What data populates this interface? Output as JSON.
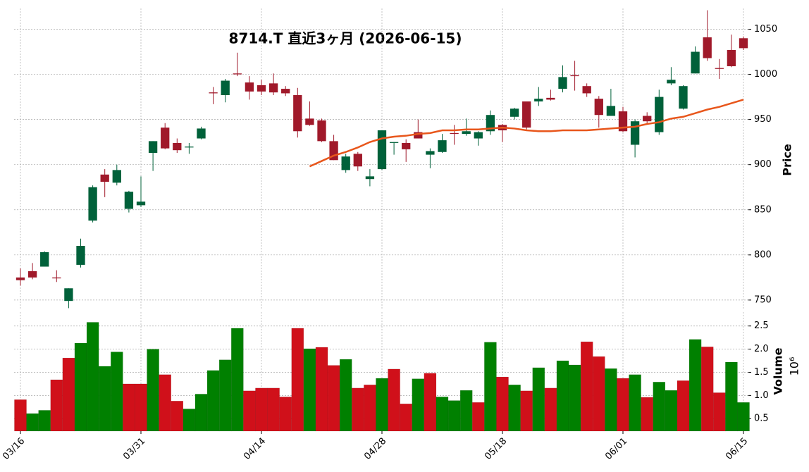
{
  "chart_data": [
    {
      "type": "candlestick",
      "title": "8714.T 直近3ヶ月 (2026-06-15)",
      "ylabel": "Price",
      "up_color": "#00613a",
      "down_color": "#a0192a",
      "open": [
        775,
        782,
        787,
        775,
        749,
        789,
        838,
        889,
        880,
        851,
        855,
        913,
        941,
        924,
        919,
        929,
        980,
        977,
        1001,
        991,
        988,
        990,
        984,
        977,
        951,
        949,
        926,
        894,
        912,
        884,
        895,
        924,
        924,
        936,
        911,
        914,
        935,
        934,
        929,
        937,
        944,
        953,
        970,
        970,
        974,
        984,
        999,
        987,
        973,
        954,
        959,
        922,
        954,
        936,
        990,
        962,
        1001,
        1041,
        1007,
        1027,
        1040
      ],
      "high": [
        785,
        791,
        804,
        783,
        763,
        818,
        877,
        895,
        900,
        871,
        887,
        926,
        946,
        929,
        924,
        942,
        986,
        995,
        1024,
        998,
        994,
        1001,
        987,
        985,
        970,
        951,
        933,
        912,
        914,
        895,
        938,
        925,
        928,
        950,
        918,
        934,
        944,
        951,
        937,
        960,
        945,
        963,
        970,
        986,
        983,
        1010,
        1015,
        990,
        976,
        984,
        964,
        950,
        958,
        983,
        1008,
        988,
        1031,
        1071,
        1017,
        1044,
        1042
      ],
      "low": [
        766,
        773,
        787,
        770,
        741,
        786,
        836,
        864,
        877,
        847,
        853,
        893,
        917,
        913,
        912,
        928,
        967,
        969,
        998,
        972,
        977,
        977,
        976,
        930,
        943,
        925,
        905,
        891,
        893,
        876,
        894,
        911,
        903,
        929,
        896,
        913,
        922,
        932,
        921,
        933,
        925,
        950,
        939,
        965,
        971,
        980,
        982,
        975,
        941,
        954,
        936,
        908,
        945,
        933,
        988,
        961,
        1001,
        1015,
        995,
        1008,
        1027
      ],
      "close": [
        772,
        775,
        803,
        774,
        763,
        810,
        875,
        881,
        894,
        870,
        859,
        926,
        918,
        916,
        920,
        940,
        979,
        993,
        1000,
        981,
        981,
        980,
        979,
        937,
        944,
        926,
        905,
        909,
        898,
        887,
        938,
        925,
        917,
        929,
        915,
        927,
        934,
        937,
        936,
        955,
        938,
        962,
        941,
        973,
        972,
        997,
        998,
        979,
        955,
        965,
        937,
        948,
        948,
        975,
        994,
        987,
        1025,
        1018,
        1006,
        1009,
        1029
      ],
      "ma": {
        "color": "#e8561b",
        "values": [
          null,
          null,
          null,
          null,
          null,
          null,
          null,
          null,
          null,
          null,
          null,
          null,
          null,
          null,
          null,
          null,
          null,
          null,
          null,
          null,
          null,
          null,
          null,
          null,
          898,
          904,
          910,
          914,
          919,
          925,
          929,
          931,
          932,
          934,
          935,
          938,
          938,
          939,
          939,
          940,
          941,
          940,
          938,
          937,
          937,
          938,
          938,
          938,
          939,
          940,
          941,
          942,
          945,
          947,
          951,
          953,
          957,
          961,
          964,
          968,
          972
        ]
      },
      "ylim": [
        739,
        1073
      ],
      "yticks": [
        750,
        800,
        850,
        900,
        950,
        1000,
        1050
      ],
      "grid": true
    },
    {
      "type": "bar",
      "ylabel": "Volume",
      "offset_label": "10⁶",
      "categories": [
        "03/16",
        null,
        null,
        null,
        null,
        null,
        null,
        null,
        null,
        null,
        "03/31",
        null,
        null,
        null,
        null,
        null,
        null,
        null,
        null,
        null,
        "04/14",
        null,
        null,
        null,
        null,
        null,
        null,
        null,
        null,
        null,
        "04/28",
        null,
        null,
        null,
        null,
        null,
        null,
        null,
        null,
        null,
        "05/18",
        null,
        null,
        null,
        null,
        null,
        null,
        null,
        null,
        null,
        "06/01",
        null,
        null,
        null,
        null,
        null,
        null,
        null,
        null,
        null,
        "06/15"
      ],
      "values": [
        0.91,
        0.61,
        0.68,
        1.34,
        1.81,
        2.13,
        2.58,
        1.63,
        1.94,
        1.25,
        1.25,
        2.0,
        1.45,
        0.88,
        0.71,
        1.03,
        1.54,
        1.77,
        2.45,
        1.1,
        1.16,
        1.16,
        0.97,
        2.45,
        2.01,
        2.04,
        1.65,
        1.78,
        1.16,
        1.23,
        1.37,
        1.57,
        0.82,
        1.36,
        1.48,
        0.97,
        0.89,
        1.11,
        0.85,
        2.15,
        1.4,
        1.23,
        1.1,
        1.6,
        1.16,
        1.75,
        1.66,
        2.16,
        1.84,
        1.58,
        1.37,
        1.45,
        0.96,
        1.29,
        1.11,
        1.32,
        2.21,
        2.05,
        1.06,
        1.72,
        0.85
      ],
      "colors": [
        "#d0101a",
        "#008000",
        "#008000",
        "#d0101a",
        "#d0101a",
        "#008000",
        "#008000",
        "#008000",
        "#008000",
        "#d0101a",
        "#d0101a",
        "#008000",
        "#d0101a",
        "#d0101a",
        "#008000",
        "#008000",
        "#008000",
        "#008000",
        "#008000",
        "#d0101a",
        "#d0101a",
        "#d0101a",
        "#d0101a",
        "#d0101a",
        "#008000",
        "#d0101a",
        "#d0101a",
        "#008000",
        "#d0101a",
        "#d0101a",
        "#008000",
        "#d0101a",
        "#d0101a",
        "#008000",
        "#d0101a",
        "#008000",
        "#008000",
        "#008000",
        "#d0101a",
        "#008000",
        "#d0101a",
        "#008000",
        "#d0101a",
        "#008000",
        "#d0101a",
        "#008000",
        "#008000",
        "#d0101a",
        "#d0101a",
        "#008000",
        "#d0101a",
        "#008000",
        "#d0101a",
        "#008000",
        "#008000",
        "#d0101a",
        "#008000",
        "#d0101a",
        "#d0101a",
        "#008000",
        "#008000"
      ],
      "ylim": [
        0.23,
        2.8
      ],
      "yticks": [
        0.5,
        {
          "value": 1,
          "label": "1.0"
        },
        1.5,
        {
          "value": 2,
          "label": "2.0"
        },
        2.5
      ],
      "grid": true
    }
  ]
}
